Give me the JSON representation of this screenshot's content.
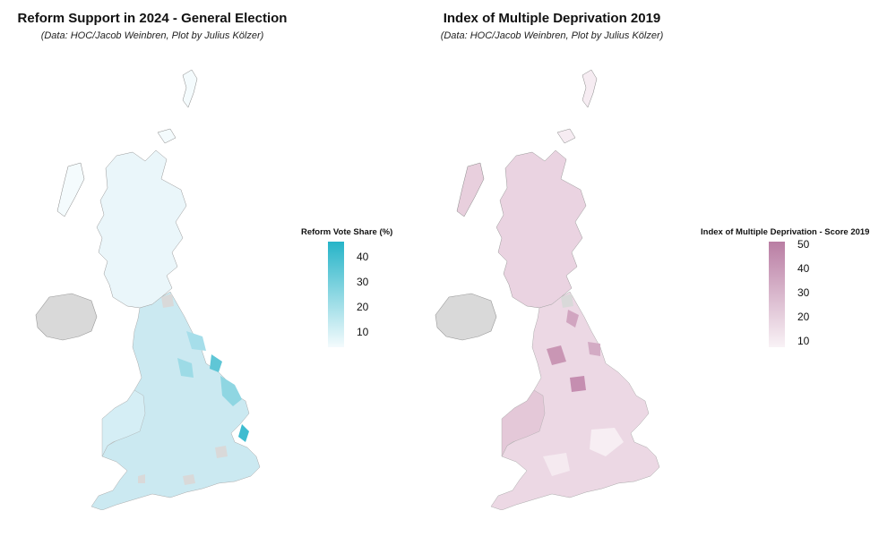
{
  "panels": [
    {
      "title": "Reform Support in 2024 - General Election",
      "subtitle": "(Data: HOC/Jacob Weinbren, Plot by Julius Kölzer)",
      "legend_title": "Reform Vote Share (%)",
      "legend_ticks": [
        "40",
        "30",
        "20",
        "10"
      ],
      "colors": {
        "high": "#26b4c8",
        "low": "#f4fbfd",
        "map_base": "#cbe9f1",
        "scotland": "#eaf6fa",
        "missing": "#d9d9d9"
      }
    },
    {
      "title": "Index of Multiple Deprivation 2019",
      "subtitle": "(Data: HOC/Jacob Weinbren, Plot by Julius Kölzer)",
      "legend_title": "Index of Multiple Deprivation - Score 2019",
      "legend_ticks": [
        "50",
        "40",
        "30",
        "20",
        "10"
      ],
      "colors": {
        "high": "#b97da3",
        "low": "#f9f2f6",
        "map_base": "#ecd8e4",
        "scotland": "#ead3e1",
        "missing": "#d9d9d9"
      }
    }
  ]
}
